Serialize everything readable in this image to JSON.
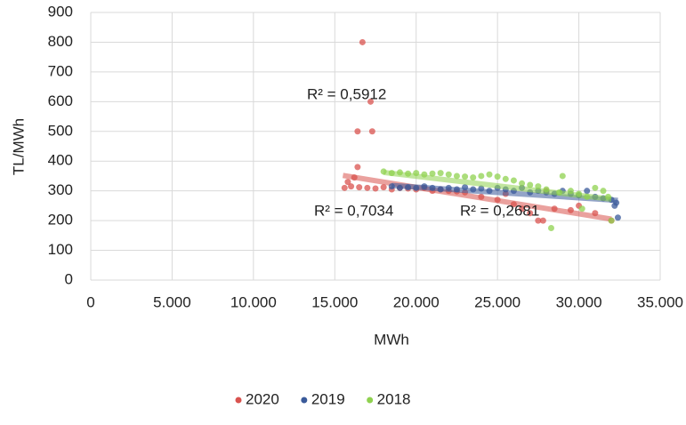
{
  "chart_data": {
    "type": "scatter",
    "x_label": "MWh",
    "y_label": "TL/MWh",
    "xlim": [
      0,
      35000
    ],
    "ylim": [
      0,
      900
    ],
    "xticks": [
      0,
      {
        "value": 5000,
        "label": "5.000"
      },
      {
        "value": 10000,
        "label": "10.000"
      },
      {
        "value": 15000,
        "label": "15.000"
      },
      {
        "value": 20000,
        "label": "20.000"
      },
      {
        "value": 25000,
        "label": "25.000"
      },
      {
        "value": 30000,
        "label": "30.000"
      },
      {
        "value": 35000,
        "label": "35.000"
      }
    ],
    "yticks": [
      0,
      100,
      200,
      300,
      400,
      500,
      600,
      700,
      800,
      900
    ],
    "grid": true,
    "legend": "bottom",
    "annotations": [
      "R² = 0,5912",
      "R² = 0,7034",
      "R² = 0,2681"
    ],
    "series": [
      {
        "name": "2020",
        "color": "#d9534f",
        "x": [
          16700,
          17200,
          16400,
          17300,
          16400,
          15600,
          16000,
          16500,
          17000,
          17500,
          18000,
          18500,
          19000,
          19500,
          20000,
          20500,
          21000,
          21500,
          22000,
          22500,
          23000,
          24000,
          25000,
          26000,
          26500,
          27000,
          27500,
          27800,
          28500,
          29500,
          30000,
          31000,
          32000,
          25500,
          28000,
          16200,
          15800
        ],
        "values": [
          800,
          600,
          500,
          500,
          380,
          310,
          315,
          312,
          310,
          308,
          312,
          305,
          310,
          308,
          305,
          310,
          300,
          305,
          300,
          298,
          295,
          280,
          270,
          255,
          240,
          225,
          200,
          200,
          240,
          235,
          250,
          225,
          200,
          290,
          300,
          345,
          330
        ],
        "trendline": {
          "x": [
            15500,
            32000
          ],
          "y": [
            352,
            205
          ]
        }
      },
      {
        "name": "2019",
        "color": "#3a5a9a",
        "x": [
          18500,
          19000,
          19500,
          20000,
          20500,
          21000,
          21500,
          22000,
          22500,
          23000,
          23500,
          24000,
          24500,
          25000,
          25500,
          26000,
          26500,
          27000,
          27500,
          28000,
          28500,
          29000,
          29500,
          30000,
          30500,
          31000,
          31500,
          32000,
          32300,
          32400,
          32200
        ],
        "values": [
          315,
          310,
          312,
          310,
          315,
          310,
          305,
          310,
          305,
          312,
          305,
          308,
          300,
          310,
          305,
          300,
          310,
          295,
          300,
          295,
          290,
          300,
          290,
          285,
          300,
          280,
          275,
          270,
          260,
          210,
          250
        ],
        "trendline": {
          "x": [
            18500,
            32400
          ],
          "y": [
            318,
            268
          ]
        }
      },
      {
        "name": "2018",
        "color": "#8fd14f",
        "x": [
          18000,
          18500,
          19000,
          19500,
          20000,
          20500,
          21000,
          21500,
          22000,
          22500,
          23000,
          23500,
          24000,
          24500,
          25000,
          25500,
          26000,
          26500,
          27000,
          27500,
          28000,
          28300,
          28800,
          29000,
          29500,
          30000,
          30500,
          31000,
          31500,
          31800,
          32000,
          30200
        ],
        "values": [
          365,
          360,
          362,
          358,
          360,
          355,
          358,
          360,
          355,
          350,
          348,
          345,
          350,
          355,
          348,
          340,
          335,
          325,
          320,
          315,
          305,
          175,
          295,
          350,
          300,
          290,
          280,
          310,
          300,
          280,
          200,
          240
        ],
        "trendline": {
          "x": [
            18000,
            32000
          ],
          "y": [
            362,
            272
          ]
        }
      }
    ]
  }
}
